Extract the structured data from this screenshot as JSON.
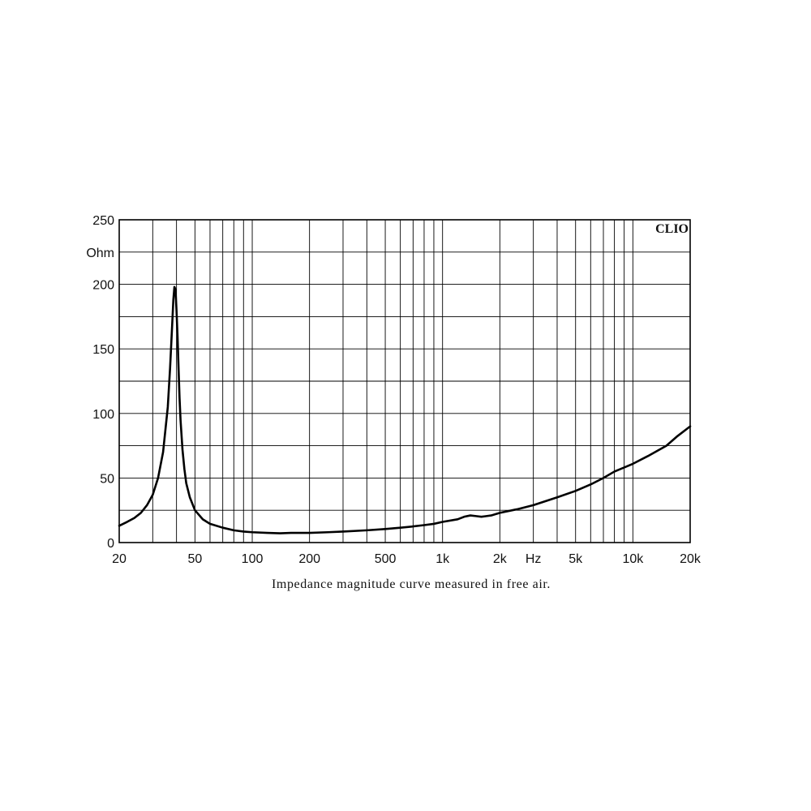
{
  "chart_data": {
    "type": "line",
    "title": "",
    "brand": "CLIO",
    "caption": "Impedance magnitude curve measured in free air.",
    "xlabel": "Hz",
    "ylabel": "Ohm",
    "x_scale": "log",
    "xlim": [
      20,
      20000
    ],
    "ylim": [
      0,
      250
    ],
    "grid": true,
    "x_ticks": [
      {
        "value": 20,
        "label": "20"
      },
      {
        "value": 50,
        "label": "50"
      },
      {
        "value": 100,
        "label": "100"
      },
      {
        "value": 200,
        "label": "200"
      },
      {
        "value": 500,
        "label": "500"
      },
      {
        "value": 1000,
        "label": "1k"
      },
      {
        "value": 2000,
        "label": "2k"
      },
      {
        "value": 5000,
        "label": "5k"
      },
      {
        "value": 10000,
        "label": "10k"
      },
      {
        "value": 20000,
        "label": "20k"
      }
    ],
    "y_ticks": [
      {
        "value": 0,
        "label": "0"
      },
      {
        "value": 50,
        "label": "50"
      },
      {
        "value": 100,
        "label": "100"
      },
      {
        "value": 150,
        "label": "150"
      },
      {
        "value": 200,
        "label": "200"
      },
      {
        "value": 250,
        "label": "250"
      }
    ],
    "x_minor_grid": [
      30,
      40,
      60,
      70,
      80,
      90,
      300,
      400,
      600,
      700,
      800,
      900,
      3000,
      4000,
      6000,
      7000,
      8000,
      9000
    ],
    "y_minor_grid": [
      25,
      75,
      125,
      175,
      225
    ],
    "series": [
      {
        "name": "",
        "color": "#000000",
        "x": [
          20,
          22,
          24,
          26,
          28,
          30,
          32,
          34,
          36,
          37,
          38,
          38.5,
          39,
          39.5,
          40,
          40.5,
          41,
          41.5,
          42,
          43,
          44,
          45,
          47,
          50,
          55,
          60,
          70,
          80,
          90,
          100,
          120,
          140,
          160,
          200,
          250,
          300,
          400,
          500,
          600,
          700,
          800,
          900,
          1000,
          1200,
          1300,
          1400,
          1500,
          1600,
          1700,
          1800,
          2000,
          2500,
          3000,
          4000,
          5000,
          6000,
          7000,
          8000,
          10000,
          12000,
          15000,
          17000,
          20000
        ],
        "y": [
          13,
          16,
          19,
          23,
          29,
          37,
          50,
          70,
          105,
          135,
          170,
          188,
          198,
          196,
          180,
          160,
          135,
          112,
          95,
          72,
          57,
          46,
          35,
          25,
          18,
          14.5,
          11.5,
          9.5,
          8.5,
          8,
          7.5,
          7.2,
          7.5,
          7.5,
          8,
          8.5,
          9.5,
          10.5,
          11.5,
          12.5,
          13.5,
          14.5,
          16,
          18,
          20,
          21,
          20.5,
          20,
          20.5,
          21,
          23,
          26,
          29,
          35,
          40,
          45,
          50,
          55,
          61,
          67,
          75,
          82,
          90
        ]
      }
    ]
  }
}
